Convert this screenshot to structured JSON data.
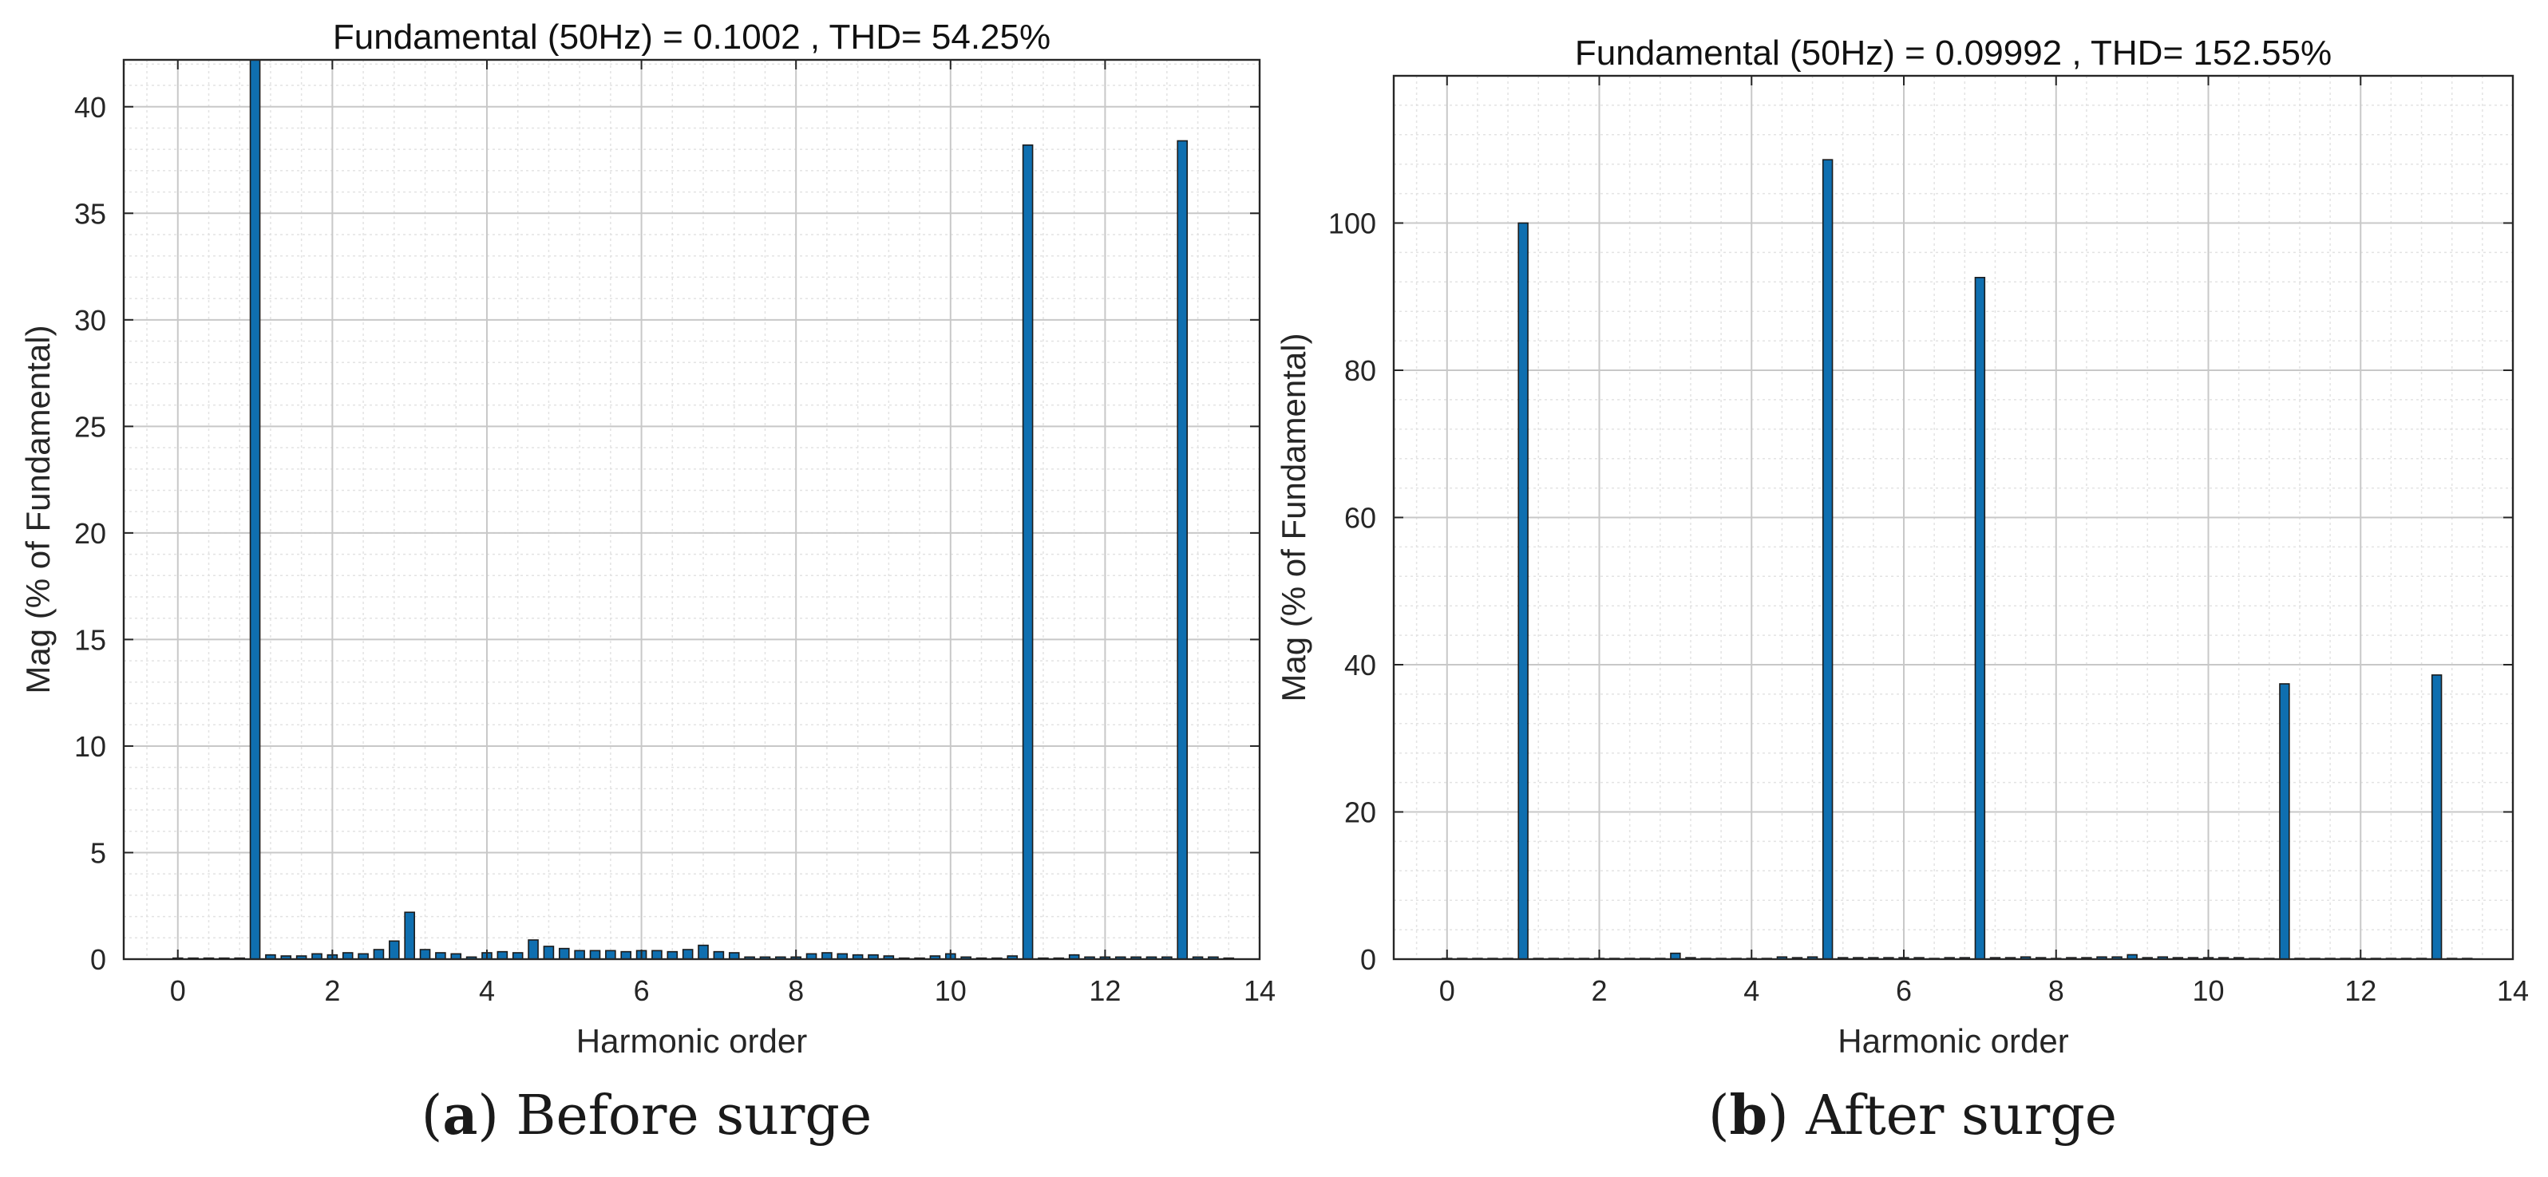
{
  "captions": [
    {
      "letter": "a",
      "text": "Before surge"
    },
    {
      "letter": "b",
      "text": "After surge"
    }
  ],
  "chart_data": [
    {
      "type": "bar",
      "title": "Fundamental (50Hz) = 0.1002 , THD= 54.25%",
      "xlabel": "Harmonic order",
      "ylabel": "Mag (% of Fundamental)",
      "xlim": [
        -0.7,
        14
      ],
      "ylim": [
        0,
        42.2
      ],
      "xticks": [
        0,
        2,
        4,
        6,
        8,
        10,
        12,
        14
      ],
      "yticks": [
        0,
        5,
        10,
        15,
        20,
        25,
        30,
        35,
        40
      ],
      "grid": true,
      "bar_color": "#0f6fb0",
      "series": [
        {
          "x": [
            0,
            0.2,
            0.4,
            0.6,
            0.8,
            1.0,
            1.2,
            1.4,
            1.6,
            1.8,
            2.0,
            2.2,
            2.4,
            2.6,
            2.8,
            3.0,
            3.2,
            3.4,
            3.6,
            3.8,
            4.0,
            4.2,
            4.4,
            4.6,
            4.8,
            5.0,
            5.2,
            5.4,
            5.6,
            5.8,
            6.0,
            6.2,
            6.4,
            6.6,
            6.8,
            7.0,
            7.2,
            7.4,
            7.6,
            7.8,
            8.0,
            8.2,
            8.4,
            8.6,
            8.8,
            9.0,
            9.2,
            9.4,
            9.6,
            9.8,
            10.0,
            10.2,
            10.4,
            10.6,
            10.8,
            11.0,
            11.2,
            11.4,
            11.6,
            11.8,
            12.0,
            12.2,
            12.4,
            12.6,
            12.8,
            13.0,
            13.2,
            13.4,
            13.6
          ],
          "y": [
            0.05,
            0.05,
            0.05,
            0.05,
            0.05,
            42.2,
            0.2,
            0.15,
            0.15,
            0.25,
            0.2,
            0.3,
            0.25,
            0.45,
            0.85,
            2.2,
            0.45,
            0.3,
            0.25,
            0.1,
            0.3,
            0.35,
            0.3,
            0.9,
            0.6,
            0.5,
            0.4,
            0.4,
            0.4,
            0.35,
            0.4,
            0.4,
            0.35,
            0.45,
            0.65,
            0.35,
            0.3,
            0.1,
            0.1,
            0.1,
            0.1,
            0.25,
            0.3,
            0.25,
            0.2,
            0.2,
            0.15,
            0.05,
            0.05,
            0.15,
            0.25,
            0.1,
            0.05,
            0.05,
            0.15,
            38.2,
            0.05,
            0.05,
            0.2,
            0.1,
            0.1,
            0.1,
            0.1,
            0.1,
            0.1,
            38.4,
            0.1,
            0.1,
            0.05
          ]
        }
      ]
    },
    {
      "type": "bar",
      "title": "Fundamental (50Hz) = 0.09992 , THD= 152.55%",
      "xlabel": "Harmonic order",
      "ylabel": "Mag (% of Fundamental)",
      "xlim": [
        -0.7,
        14
      ],
      "ylim": [
        0,
        120
      ],
      "xticks": [
        0,
        2,
        4,
        6,
        8,
        10,
        12,
        14
      ],
      "yticks": [
        0,
        20,
        40,
        60,
        80,
        100
      ],
      "grid": true,
      "bar_color": "#0f6fb0",
      "series": [
        {
          "x": [
            0,
            0.2,
            0.4,
            0.6,
            0.8,
            1.0,
            1.2,
            1.4,
            1.6,
            1.8,
            2.0,
            2.2,
            2.4,
            2.6,
            2.8,
            3.0,
            3.2,
            3.4,
            3.6,
            3.8,
            4.0,
            4.2,
            4.4,
            4.6,
            4.8,
            5.0,
            5.2,
            5.4,
            5.6,
            5.8,
            6.0,
            6.2,
            6.4,
            6.6,
            6.8,
            7.0,
            7.2,
            7.4,
            7.6,
            7.8,
            8.0,
            8.2,
            8.4,
            8.6,
            8.8,
            9.0,
            9.2,
            9.4,
            9.6,
            9.8,
            10.0,
            10.2,
            10.4,
            10.6,
            10.8,
            11.0,
            11.2,
            11.4,
            11.6,
            11.8,
            12.0,
            12.2,
            12.4,
            12.6,
            12.8,
            13.0,
            13.2,
            13.4
          ],
          "y": [
            0.1,
            0.1,
            0.1,
            0.1,
            0.1,
            100,
            0.1,
            0.1,
            0.1,
            0.1,
            0.1,
            0.1,
            0.1,
            0.1,
            0.1,
            0.8,
            0.2,
            0.1,
            0.1,
            0.1,
            0.1,
            0.1,
            0.3,
            0.2,
            0.3,
            108.6,
            0.2,
            0.2,
            0.2,
            0.2,
            0.2,
            0.2,
            0.1,
            0.2,
            0.2,
            92.6,
            0.2,
            0.2,
            0.3,
            0.2,
            0.1,
            0.2,
            0.2,
            0.3,
            0.3,
            0.6,
            0.2,
            0.3,
            0.2,
            0.2,
            0.2,
            0.2,
            0.2,
            0.1,
            0.1,
            37.4,
            0.1,
            0.1,
            0.1,
            0.1,
            0.1,
            0.1,
            0.1,
            0.1,
            0.1,
            38.6,
            0.1,
            0.1
          ]
        }
      ]
    }
  ]
}
